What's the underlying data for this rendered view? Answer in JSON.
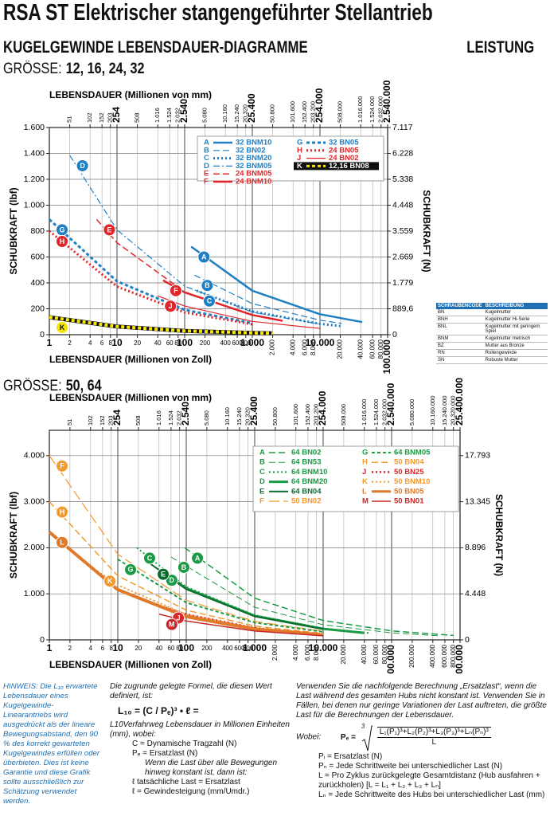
{
  "header": {
    "title": "RSA ST Elektrischer stangengeführter Stellantrieb",
    "subtitle": "KUGELGEWINDE LEBENSDAUER-DIAGRAMME",
    "section": "LEISTUNG"
  },
  "chart_data": [
    {
      "type": "line",
      "title_prefix": "GRÖSSE:",
      "title": "12, 16, 24, 32",
      "x_label": "LEBENSDAUER (Millionen von Zoll)",
      "x2_label": "LEBENSDAUER (Millionen von mm)",
      "y_label": "SCHUBKRAFT (lbf)",
      "y2_label": "SCHUBKRAFT (N)",
      "xlog": true,
      "grid": true,
      "xlim": [
        1,
        100000
      ],
      "xticks": [
        1,
        2,
        4,
        6,
        8,
        10,
        20,
        40,
        60,
        80,
        100,
        200,
        400,
        600,
        800,
        {
          "value": 1000,
          "label": "1.000"
        },
        {
          "value": 2000,
          "label": "2.000"
        },
        {
          "value": 4000,
          "label": "4.000"
        },
        {
          "value": 6000,
          "label": "6.000"
        },
        {
          "value": 8000,
          "label": "8.000"
        },
        {
          "value": 10000,
          "label": "10.000"
        },
        {
          "value": 20000,
          "label": "20.000"
        },
        {
          "value": 40000,
          "label": "40.000"
        },
        {
          "value": 60000,
          "label": "60.000"
        },
        {
          "value": 80000,
          "label": "80.000"
        },
        {
          "value": 100000,
          "label": "100.000"
        }
      ],
      "x2lim": [
        25.4,
        2540000
      ],
      "x2ticks": [
        {
          "value": 50.8,
          "label": "51"
        },
        {
          "value": 101.6,
          "label": "102"
        },
        {
          "value": 152.4,
          "label": "152"
        },
        {
          "value": 203.2,
          "label": "203"
        },
        254,
        508,
        {
          "value": 1016,
          "label": "1.016"
        },
        {
          "value": 1524,
          "label": "1.524"
        },
        {
          "value": 2032,
          "label": "2.032"
        },
        {
          "value": 2540,
          "label": "2.540"
        },
        {
          "value": 5080,
          "label": "5.080"
        },
        {
          "value": 10160,
          "label": "10.160"
        },
        {
          "value": 15240,
          "label": "15.240"
        },
        {
          "value": 20320,
          "label": "20.320"
        },
        {
          "value": 25400,
          "label": "25.400"
        },
        {
          "value": 50800,
          "label": "50.800"
        },
        {
          "value": 101600,
          "label": "101.600"
        },
        {
          "value": 152400,
          "label": "152.400"
        },
        {
          "value": 203200,
          "label": "203.200"
        },
        {
          "value": 254000,
          "label": "254.000"
        },
        {
          "value": 508000,
          "label": "508.000"
        },
        {
          "value": 1016000,
          "label": "1.016.000"
        },
        {
          "value": 1524000,
          "label": "1.524.000"
        },
        {
          "value": 2032000,
          "label": "2.032.000"
        },
        {
          "value": 2540000,
          "label": "2.540.000"
        }
      ],
      "ylim": [
        0,
        1600
      ],
      "yticks": [
        0,
        200,
        400,
        600,
        800,
        {
          "value": 1000,
          "label": "1.000"
        },
        {
          "value": 1200,
          "label": "1.200"
        },
        {
          "value": 1400,
          "label": "1.400"
        },
        {
          "value": 1600,
          "label": "1.600"
        }
      ],
      "y2lim": [
        0,
        7117
      ],
      "y2ticks": [
        0,
        {
          "value": 889.6,
          "label": "889,6"
        },
        {
          "value": 1779,
          "label": "1.779"
        },
        {
          "value": 2669,
          "label": "2.669"
        },
        {
          "value": 3559,
          "label": "3.559"
        },
        {
          "value": 4448,
          "label": "4.448"
        },
        {
          "value": 5338,
          "label": "5.338"
        },
        {
          "value": 6228,
          "label": "6.228"
        },
        {
          "value": 7117,
          "label": "7.117"
        }
      ],
      "series": [
        {
          "letter": "A",
          "name": "32 BNM10",
          "color": "#1e7fc4",
          "dash": "solid",
          "width": 2.5,
          "x": [
            125,
            1000,
            10000,
            42000
          ],
          "values": [
            680,
            340,
            158,
            97
          ]
        },
        {
          "letter": "B",
          "name": "32 BN02",
          "color": "#1e7fc4",
          "dash": "dashed",
          "width": 1.2,
          "x": [
            140,
            1000,
            10000,
            21000
          ],
          "values": [
            460,
            240,
            112,
            87
          ]
        },
        {
          "letter": "C",
          "name": "32 BNM20",
          "color": "#1e7fc4",
          "dash": "dotted",
          "width": 3,
          "x": [
            150,
            1000,
            10000,
            20000
          ],
          "values": [
            340,
            180,
            84,
            67
          ]
        },
        {
          "letter": "D",
          "name": "32 BNM05",
          "color": "#1e7fc4",
          "dash": "dashdot",
          "width": 1.2,
          "x": [
            2,
            10,
            100,
            1000,
            10000
          ],
          "values": [
            1385,
            810,
            375,
            174,
            81
          ]
        },
        {
          "letter": "E",
          "name": "24 BNM05",
          "color": "#e0262b",
          "dash": "dashed",
          "width": 1.5,
          "x": [
            5,
            10,
            100,
            1000,
            3000
          ],
          "values": [
            890,
            710,
            330,
            153,
            106
          ]
        },
        {
          "letter": "F",
          "name": "24 BNM10",
          "color": "#e0262b",
          "dash": "solid",
          "width": 2.5,
          "x": [
            48,
            100,
            1000,
            2800
          ],
          "values": [
            420,
            327,
            152,
            107
          ]
        },
        {
          "letter": "G",
          "name": "32 BN05",
          "color": "#1e7fc4",
          "dash": "shortdash",
          "width": 3,
          "x": [
            1,
            10,
            100,
            1000
          ],
          "values": [
            890,
            413,
            192,
            89
          ]
        },
        {
          "letter": "H",
          "name": "24 BN05",
          "color": "#e0262b",
          "dash": "dotted",
          "width": 3,
          "x": [
            1,
            10,
            100,
            1000
          ],
          "values": [
            800,
            371,
            172,
            80
          ]
        },
        {
          "letter": "J",
          "name": "24 BN02",
          "color": "#e0262b",
          "dash": "solid",
          "width": 1.2,
          "x": [
            40,
            100,
            1000,
            10000
          ],
          "values": [
            300,
            221,
            103,
            48
          ]
        },
        {
          "letter": "K",
          "name": "12,16 BN08",
          "color": "#f5e400",
          "dash": "checker",
          "width": 4,
          "x": [
            1,
            10,
            100,
            1000,
            2000
          ],
          "values": [
            135,
            63,
            29,
            14,
            11
          ]
        }
      ]
    },
    {
      "type": "line",
      "title_prefix": "GRÖSSE:",
      "title": "50, 64",
      "x_label": "LEBENSDAUER (Millionen von Zoll)",
      "x2_label": "LEBENSDAUER (Millionen von mm)",
      "y_label": "SCHUBKRAFT (lbf)",
      "y2_label": "SCHUBKRAFT (N)",
      "xlog": true,
      "grid": true,
      "xlim": [
        1,
        1000000
      ],
      "xticks": [
        1,
        2,
        4,
        6,
        8,
        10,
        20,
        40,
        60,
        80,
        100,
        200,
        400,
        600,
        800,
        {
          "value": 1000,
          "label": "1.000"
        },
        {
          "value": 2000,
          "label": "2.000"
        },
        {
          "value": 4000,
          "label": "4.000"
        },
        {
          "value": 6000,
          "label": "6.000"
        },
        {
          "value": 8000,
          "label": "8.000"
        },
        {
          "value": 10000,
          "label": "10.000"
        },
        {
          "value": 20000,
          "label": "20.000"
        },
        {
          "value": 40000,
          "label": "40.000"
        },
        {
          "value": 60000,
          "label": "60.000"
        },
        {
          "value": 80000,
          "label": "80.000"
        },
        {
          "value": 100000,
          "label": "100.000"
        },
        {
          "value": 200000,
          "label": "200.000"
        },
        {
          "value": 400000,
          "label": "400.000"
        },
        {
          "value": 600000,
          "label": "600.000"
        },
        {
          "value": 800000,
          "label": "800.000"
        },
        {
          "value": 1000000,
          "label": "1.000.000"
        }
      ],
      "x2lim": [
        25.4,
        25400000
      ],
      "x2ticks": [
        {
          "value": 50.8,
          "label": "51"
        },
        {
          "value": 101.6,
          "label": "102"
        },
        {
          "value": 152.4,
          "label": "152"
        },
        {
          "value": 203.2,
          "label": "203"
        },
        254,
        508,
        {
          "value": 1016,
          "label": "1.016"
        },
        {
          "value": 1524,
          "label": "1.524"
        },
        {
          "value": 2032,
          "label": "2.032"
        },
        {
          "value": 2540,
          "label": "2.540"
        },
        {
          "value": 5080,
          "label": "5.080"
        },
        {
          "value": 10160,
          "label": "10.160"
        },
        {
          "value": 15240,
          "label": "15.240"
        },
        {
          "value": 20320,
          "label": "20.320"
        },
        {
          "value": 25400,
          "label": "25.400"
        },
        {
          "value": 50800,
          "label": "50.800"
        },
        {
          "value": 101600,
          "label": "101.600"
        },
        {
          "value": 152400,
          "label": "152.400"
        },
        {
          "value": 203200,
          "label": "203.200"
        },
        {
          "value": 254000,
          "label": "254.000"
        },
        {
          "value": 508000,
          "label": "508.000"
        },
        {
          "value": 1016000,
          "label": "1.016.000"
        },
        {
          "value": 1524000,
          "label": "1.524.000"
        },
        {
          "value": 2032000,
          "label": "2.032.000"
        },
        {
          "value": 2540000,
          "label": "2.540.000"
        },
        {
          "value": 5080000,
          "label": "5.080.000"
        },
        {
          "value": 10160000,
          "label": "10.160.000"
        },
        {
          "value": 15240000,
          "label": "15.240.000"
        },
        {
          "value": 20320000,
          "label": "20.320.000"
        },
        {
          "value": 25400000,
          "label": "25.400.000"
        }
      ],
      "ylim": [
        0,
        4550
      ],
      "yticks": [
        0,
        {
          "value": 1000,
          "label": "1.000"
        },
        {
          "value": 2000,
          "label": "2.000"
        },
        {
          "value": 3000,
          "label": "3.000"
        },
        {
          "value": 4000,
          "label": "4.000"
        }
      ],
      "y2lim": [
        0,
        20238
      ],
      "y2ticks": [
        0,
        {
          "value": 4448,
          "label": "4.448"
        },
        {
          "value": 8896,
          "label": "8.896"
        },
        {
          "value": 13345,
          "label": "13.345"
        },
        {
          "value": 17793,
          "label": "17.793"
        }
      ],
      "series": [
        {
          "letter": "A",
          "name": "64 BN02",
          "color": "#1a9a44",
          "dash": "dashed",
          "width": 1.5,
          "x": [
            95,
            1000,
            10000,
            100000,
            800000
          ],
          "values": [
            2000,
            905,
            420,
            195,
            97
          ]
        },
        {
          "letter": "B",
          "name": "64 BN53",
          "color": "#1a9a44",
          "dash": "dashed",
          "width": 1,
          "x": [
            60,
            1000,
            10000,
            100000,
            500000
          ],
          "values": [
            1800,
            710,
            330,
            153,
            89
          ]
        },
        {
          "letter": "C",
          "name": "64 BNM10",
          "color": "#1a9a44",
          "dash": "dotted",
          "width": 2,
          "x": [
            19,
            100,
            1000,
            10000,
            50000
          ],
          "values": [
            2000,
            1150,
            535,
            248,
            145
          ]
        },
        {
          "letter": "D",
          "name": "64 BNM20",
          "color": "#1a9a44",
          "dash": "solid",
          "width": 3,
          "x": [
            40,
            100,
            1000,
            10000,
            40000
          ],
          "values": [
            1520,
            1120,
            520,
            241,
            152
          ]
        },
        {
          "letter": "E",
          "name": "64 BN04",
          "color": "#0b6b2c",
          "dash": "solid",
          "width": 2,
          "x": [
            30,
            100,
            1000,
            10000
          ],
          "values": [
            1650,
            1100,
            510,
            237
          ]
        },
        {
          "letter": "F",
          "name": "50 BN02",
          "color": "#f29a2e",
          "dash": "longdash",
          "width": 1.2,
          "x": [
            1,
            10,
            100,
            1000,
            10000
          ],
          "values": [
            4000,
            1860,
            860,
            400,
            186
          ]
        },
        {
          "letter": "G",
          "name": "64 BNM05",
          "color": "#1a9a44",
          "dash": "shortdash",
          "width": 2,
          "x": [
            10,
            100,
            1000,
            10000
          ],
          "values": [
            1750,
            810,
            376,
            175
          ]
        },
        {
          "letter": "H",
          "name": "50 BN04",
          "color": "#f29a2e",
          "dash": "dashed",
          "width": 1.5,
          "x": [
            1,
            10,
            100,
            1000,
            10000
          ],
          "values": [
            3000,
            1390,
            646,
            300,
            139
          ]
        },
        {
          "letter": "J",
          "name": "50 BN25",
          "color": "#d7262c",
          "dash": "dotted",
          "width": 2.5,
          "x": [
            50,
            100,
            1000,
            10000
          ],
          "values": [
            700,
            555,
            258,
            120
          ]
        },
        {
          "letter": "K",
          "name": "50 BNM10",
          "color": "#f29a2e",
          "dash": "dotted",
          "width": 2,
          "x": [
            5,
            10,
            100,
            1000,
            10000
          ],
          "values": [
            1500,
            1190,
            550,
            256,
            119
          ]
        },
        {
          "letter": "L",
          "name": "50 BN05",
          "color": "#e07a2a",
          "dash": "solid",
          "width": 4,
          "x": [
            1,
            10,
            100,
            1000,
            10000
          ],
          "values": [
            2340,
            1090,
            504,
            234,
            109
          ]
        },
        {
          "letter": "M",
          "name": "50 BN01",
          "color": "#c8282c",
          "dash": "solid",
          "width": 1.5,
          "x": [
            40,
            100,
            1000,
            10000
          ],
          "values": [
            560,
            410,
            192,
            89
          ]
        }
      ]
    }
  ],
  "code_table": {
    "header": [
      "SCHRAUBENCODE",
      "BESCHREIBUNG"
    ],
    "rows": [
      [
        "BN",
        "Kugelmutter"
      ],
      [
        "BNH",
        "Kugelmutter Hi-Serie"
      ],
      [
        "BNL",
        "Kugelmutter mit geringem Spiel"
      ],
      [
        "BNM",
        "Kugelmutter metrisch"
      ],
      [
        "BZ",
        "Mutter aus Bronze"
      ],
      [
        "RN",
        "Rollengewinde"
      ],
      [
        "SN",
        "Robuste Mutter"
      ]
    ]
  },
  "notes": {
    "hint": "HINWEIS: Die L₁₀ erwartete Lebensdauer eines Kugelgewinde-Linearantriebs wird ausgedrückt als der lineare Bewegungsabstand, den 90 % des korrekt gewarteten Kugelgewindes erfüllen oder überbieten. Dies ist keine Garantie und diese Grafik sollte ausschließlich zur Schätzung verwendet werden.",
    "formula_intro": "Die zugrunde gelegte Formel, die diesen Wert definiert, ist:",
    "formula": "L₁₀ = (C / Pₑ)³ • ℓ =",
    "formula_desc": "L10Verfahrweg Lebensdauer in Millionen Einheiten (mm), wobei:",
    "c_def": "C = Dynamische Tragzahl (N)",
    "pe_def": "Pₑ = Ersatzlast (N)",
    "constant": "Wenn die Last über alle Bewegungen hinweg konstant ist, dann ist:",
    "actual": "ℓ  tatsächliche Last = Ersatzlast",
    "lead": "ℓ = Gewindesteigung (mm/Umdr.)",
    "equiv_intro": "Verwenden Sie die nachfolgende Berechnung „Ersatzlast“, wenn die Last während des gesamten Hubs nicht konstant ist. Verwenden Sie in Fällen, bei denen nur geringe Variationen der Last auftreten, die größte Last für die Berechnungen der Lebensdauer.",
    "where": "Wobei:",
    "pe_lhs": "Pₑ =",
    "root_index": "3",
    "numerator": "L₁(P₁)³+L₂(P₂)³+L₃(P₃)³+Lₙ(Pₙ)³",
    "denominator": "L",
    "pi_def": "Pᵢ = Ersatzlast (N)",
    "pn_def": "Pₙ = Jede Schrittweite bei unterschiedlicher Last (N)",
    "l_def": "L = Pro Zyklus zurückgelegte Gesamtdistanz (Hub ausfahren + zurückholen) [L = L₁ + L₂ + L₃ + Lₙ]",
    "ln_def": "Lₙ = Jede Schrittweite des Hubs bei unterschiedlicher Last (mm)"
  }
}
